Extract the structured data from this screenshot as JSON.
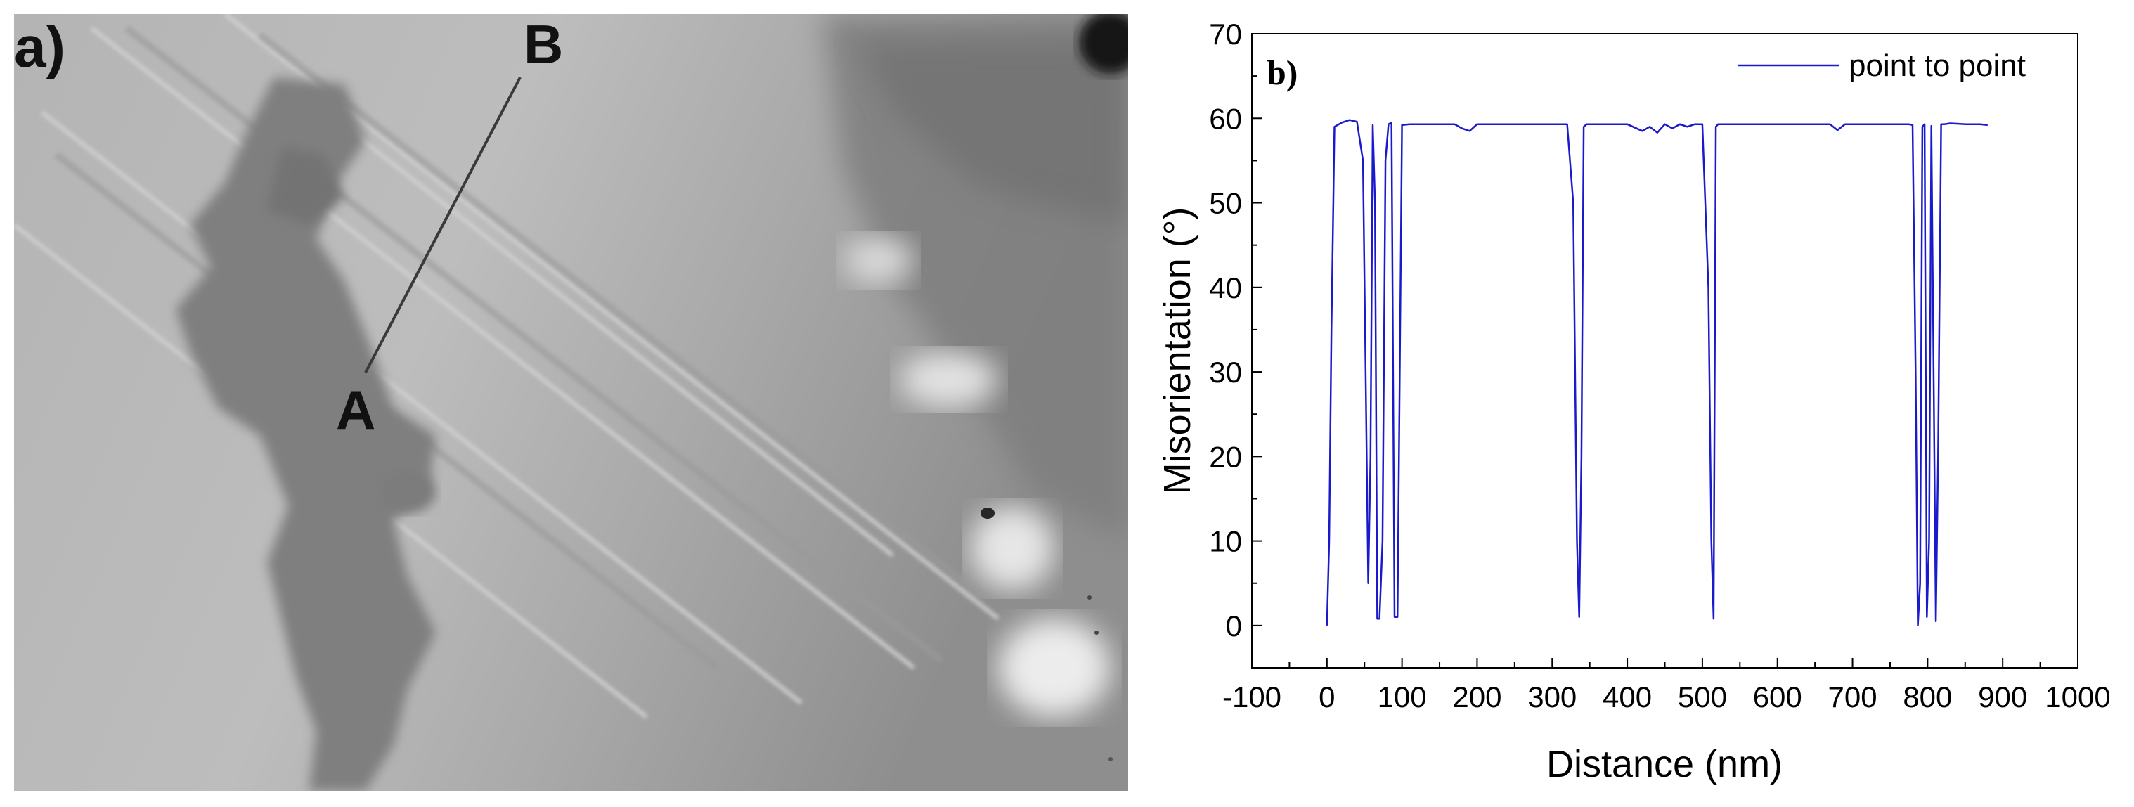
{
  "panel_a": {
    "label": "a)",
    "point_a": "A",
    "point_b": "B"
  },
  "chart_data": {
    "type": "line",
    "panel_label": "b)",
    "xlabel": "Distance (nm)",
    "ylabel": "Misorientation (°)",
    "xlim": [
      -100,
      1000
    ],
    "ylim": [
      -5,
      70
    ],
    "xticks": [
      -100,
      0,
      100,
      200,
      300,
      400,
      500,
      600,
      700,
      800,
      900,
      1000
    ],
    "yticks": [
      0,
      10,
      20,
      30,
      40,
      50,
      60,
      70
    ],
    "grid": false,
    "legend_position": "top-right",
    "color": "#1a1acc",
    "series": [
      {
        "name": "point to point",
        "x": [
          0,
          3,
          6,
          10,
          20,
          30,
          40,
          48,
          55,
          58,
          61,
          64,
          67,
          70,
          74,
          78,
          82,
          86,
          90,
          94,
          97,
          100,
          110,
          130,
          150,
          170,
          180,
          190,
          200,
          220,
          250,
          280,
          300,
          320,
          328,
          333,
          336,
          339,
          342,
          346,
          350,
          370,
          400,
          420,
          430,
          440,
          450,
          460,
          470,
          480,
          490,
          500,
          508,
          512,
          515,
          518,
          521,
          524,
          528,
          535,
          560,
          600,
          640,
          670,
          680,
          690,
          700,
          730,
          760,
          775,
          780,
          784,
          787,
          790,
          793,
          796,
          799,
          802,
          805,
          808,
          811,
          814,
          818,
          822,
          830,
          850,
          870,
          880
        ],
        "y": [
          0,
          10,
          35,
          59,
          59.5,
          59.8,
          59.6,
          55,
          5,
          20,
          59.2,
          50,
          0.8,
          0.8,
          10,
          55,
          59.3,
          59.5,
          1,
          1,
          30,
          59.2,
          59.3,
          59.3,
          59.3,
          59.3,
          58.8,
          58.5,
          59.3,
          59.3,
          59.3,
          59.3,
          59.3,
          59.3,
          50,
          10,
          1,
          20,
          59,
          59.3,
          59.3,
          59.3,
          59.3,
          58.5,
          59,
          58.3,
          59.3,
          58.8,
          59.3,
          59,
          59.3,
          59.3,
          40,
          10,
          0.8,
          59,
          59.3,
          59.3,
          59.3,
          59.3,
          59.3,
          59.3,
          59.3,
          59.3,
          58.6,
          59.3,
          59.3,
          59.3,
          59.3,
          59.3,
          59.2,
          30,
          0,
          5,
          59,
          59.3,
          1,
          10,
          59.1,
          30,
          0.5,
          20,
          59.3,
          59.3,
          59.4,
          59.3,
          59.3,
          59.2
        ]
      }
    ]
  }
}
